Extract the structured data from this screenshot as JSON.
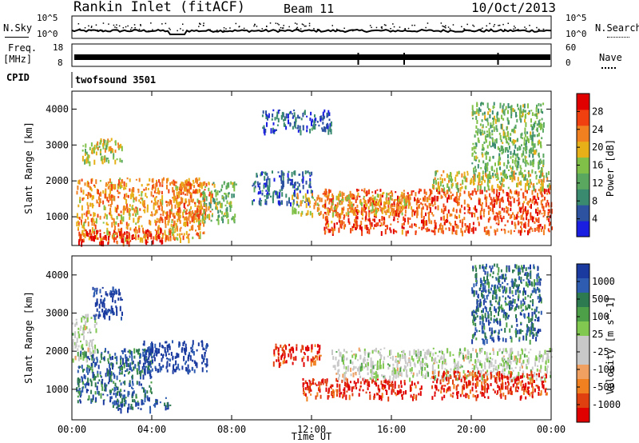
{
  "header": {
    "station": "Rankin Inlet (fitACF)",
    "beam": "Beam 11",
    "date": "10/Oct/2013"
  },
  "noise_panel": {
    "left_label": "N.Sky",
    "right_label": "N.Search",
    "left_ticks": [
      "10^5",
      "10^0"
    ],
    "right_ticks": [
      "10^5",
      "10^0"
    ]
  },
  "freq_panel": {
    "left_label_1": "Freq.",
    "left_label_2": "[MHz]",
    "left_ticks": [
      "18",
      "8"
    ],
    "right_label": "Nave",
    "right_ticks": [
      "60",
      "0"
    ]
  },
  "cpid_panel": {
    "label": "CPID",
    "value": "twofsound 3501"
  },
  "colors": {
    "power_scale": [
      "#1a1ee0",
      "#2c52a0",
      "#3a8a70",
      "#5aa860",
      "#80c048",
      "#e8b018",
      "#f08020",
      "#f04010",
      "#e00000"
    ],
    "velocity_scale": [
      "#1a3aa0",
      "#2e5cb0",
      "#2e7a50",
      "#4ea048",
      "#80c850",
      "#c8c8c8",
      "#c8c8c8",
      "#f0a060",
      "#f08020",
      "#e04010",
      "#e00000"
    ]
  },
  "chart_data": [
    {
      "type": "heatmap",
      "title": "Power",
      "xlabel": "",
      "ylabel": "Slant Range [km]",
      "x_ticks": [
        "00:00",
        "04:00",
        "08:00",
        "12:00",
        "16:00",
        "20:00",
        "00:00"
      ],
      "xlim": [
        0,
        24
      ],
      "ylim": [
        200,
        4500
      ],
      "y_ticks": [
        1000,
        2000,
        3000,
        4000
      ],
      "colorbar": {
        "label": "Power [dB]",
        "ticks": [
          4,
          8,
          12,
          16,
          20,
          24,
          28
        ],
        "range": [
          0,
          32
        ]
      },
      "regions": [
        {
          "t": [
            0.2,
            6.6
          ],
          "r": [
            400,
            2100
          ],
          "value": 22
        },
        {
          "t": [
            0.2,
            4.5
          ],
          "r": [
            300,
            700
          ],
          "value": 28
        },
        {
          "t": [
            5.0,
            7.0
          ],
          "r": [
            1000,
            2000
          ],
          "value": 24
        },
        {
          "t": [
            0.5,
            2.5
          ],
          "r": [
            2500,
            3200
          ],
          "value": 18
        },
        {
          "t": [
            6.5,
            8.2
          ],
          "r": [
            900,
            2000
          ],
          "value": 14
        },
        {
          "t": [
            9.0,
            12.0
          ],
          "r": [
            1400,
            2300
          ],
          "value": 6
        },
        {
          "t": [
            9.5,
            13.0
          ],
          "r": [
            3400,
            4000
          ],
          "value": 6
        },
        {
          "t": [
            12.5,
            24.0
          ],
          "r": [
            600,
            1800
          ],
          "value": 26
        },
        {
          "t": [
            11.0,
            17.0
          ],
          "r": [
            1100,
            1700
          ],
          "value": 20
        },
        {
          "t": [
            20.0,
            23.6
          ],
          "r": [
            2100,
            4200
          ],
          "value": 14
        },
        {
          "t": [
            18.0,
            24.0
          ],
          "r": [
            1800,
            2300
          ],
          "value": 18
        }
      ]
    },
    {
      "type": "heatmap",
      "title": "Velocity",
      "xlabel": "Time UT",
      "ylabel": "Slant Range [km]",
      "x_ticks": [
        "00:00",
        "04:00",
        "08:00",
        "12:00",
        "16:00",
        "20:00",
        "00:00"
      ],
      "xlim": [
        0,
        24
      ],
      "ylim": [
        200,
        4500
      ],
      "y_ticks": [
        1000,
        2000,
        3000,
        4000
      ],
      "colorbar": {
        "label": "Velocity [m s^-1]",
        "ticks": [
          1000,
          500,
          100,
          25,
          -25,
          -100,
          -500,
          -1000
        ]
      },
      "regions": [
        {
          "t": [
            0.0,
            1.2
          ],
          "r": [
            1800,
            3000
          ],
          "value": 0
        },
        {
          "t": [
            0.2,
            4.0
          ],
          "r": [
            700,
            2100
          ],
          "value": 100
        },
        {
          "t": [
            1.0,
            2.5
          ],
          "r": [
            2900,
            3700
          ],
          "value": 800
        },
        {
          "t": [
            3.5,
            6.8
          ],
          "r": [
            1500,
            2300
          ],
          "value": 800
        },
        {
          "t": [
            2.0,
            5.0
          ],
          "r": [
            500,
            800
          ],
          "value": 200
        },
        {
          "t": [
            10.0,
            12.5
          ],
          "r": [
            1700,
            2200
          ],
          "value": -300
        },
        {
          "t": [
            11.5,
            17.5
          ],
          "r": [
            800,
            1300
          ],
          "value": -400
        },
        {
          "t": [
            13.0,
            24.0
          ],
          "r": [
            1300,
            2100
          ],
          "value": 0
        },
        {
          "t": [
            18.0,
            23.8
          ],
          "r": [
            800,
            1500
          ],
          "value": -250
        },
        {
          "t": [
            20.0,
            23.5
          ],
          "r": [
            2300,
            4300
          ],
          "value": 100
        }
      ]
    }
  ]
}
